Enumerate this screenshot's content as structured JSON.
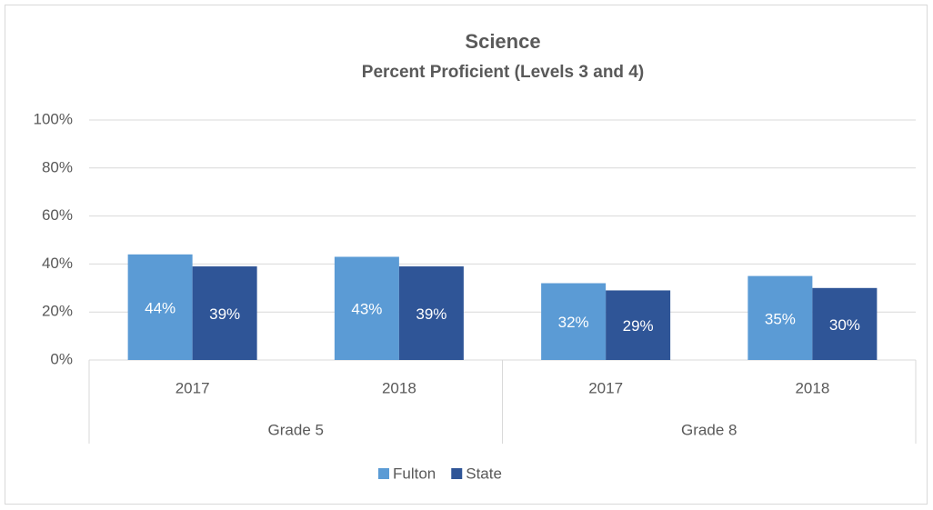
{
  "chart_data": {
    "type": "bar",
    "title": "Science",
    "subtitle": "Percent Proficient (Levels 3 and 4)",
    "categories": [
      "2017",
      "2018",
      "2017",
      "2018"
    ],
    "category_groups": [
      "Grade 5",
      "Grade 8"
    ],
    "series": [
      {
        "name": "Fulton",
        "color": "#5b9bd5",
        "values": [
          44,
          43,
          32,
          35
        ],
        "value_labels": [
          "44%",
          "43%",
          "32%",
          "35%"
        ]
      },
      {
        "name": "State",
        "color": "#2f5597",
        "values": [
          39,
          39,
          29,
          30
        ],
        "value_labels": [
          "39%",
          "39%",
          "29%",
          "30%"
        ]
      }
    ],
    "ylim": [
      0,
      100
    ],
    "yticks": [
      {
        "value": 0,
        "label": "0%"
      },
      {
        "value": 20,
        "label": "20%"
      },
      {
        "value": 40,
        "label": "40%"
      },
      {
        "value": 60,
        "label": "60%"
      },
      {
        "value": 80,
        "label": "80%"
      },
      {
        "value": 100,
        "label": "100%"
      }
    ],
    "grid": true,
    "legend": "bottom"
  }
}
